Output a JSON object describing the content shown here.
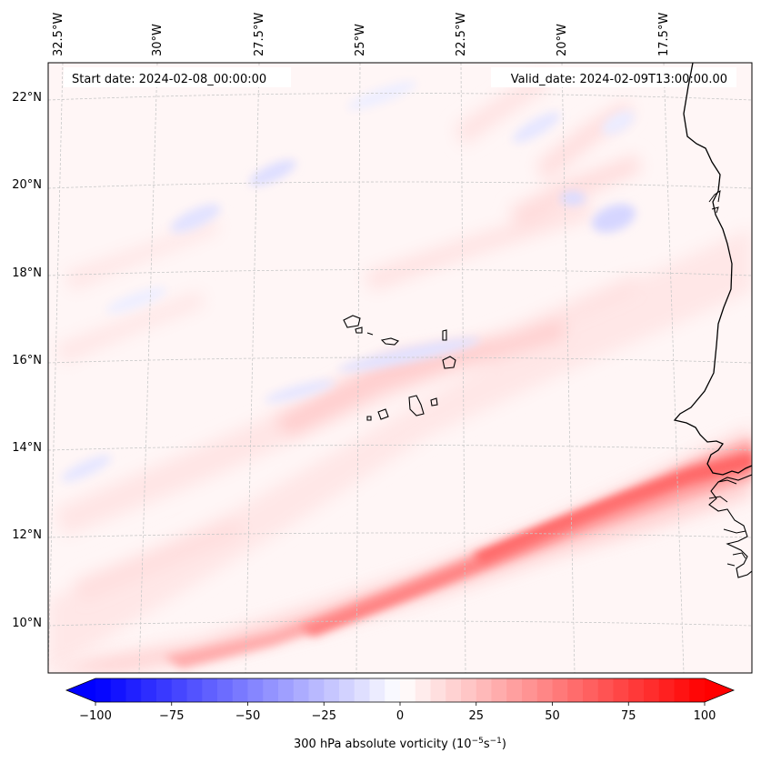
{
  "chart_data": {
    "type": "heatmap",
    "title": "",
    "variable": "300 hPa absolute vorticity",
    "units_base": "10",
    "units_exp1": "−5",
    "units_mid": "s",
    "units_exp2": "−1",
    "start_date_label": "Start date: 2024-02-08_00:00:00",
    "valid_date_label": "Valid_date: 2024-02-09T13:00:00.00",
    "lon_labels": [
      "32.5°W",
      "30°W",
      "27.5°W",
      "25°W",
      "22.5°W",
      "20°W",
      "17.5°W"
    ],
    "lon_values": [
      -32.5,
      -30,
      -27.5,
      -25,
      -22.5,
      -20,
      -17.5
    ],
    "lat_labels": [
      "22°N",
      "20°N",
      "18°N",
      "16°N",
      "14°N",
      "12°N",
      "10°N"
    ],
    "lat_values": [
      22,
      20,
      18,
      16,
      14,
      12,
      10
    ],
    "colorbar": {
      "min": -100,
      "max": 100,
      "levels": 41,
      "ticks": [
        -100,
        -75,
        -50,
        -25,
        0,
        25,
        50,
        75,
        100
      ],
      "tick_labels": [
        "−100",
        "−75",
        "−50",
        "−25",
        "0",
        "25",
        "50",
        "75",
        "100"
      ],
      "extend": "both",
      "colormap": "bwr"
    },
    "features": {
      "main_band_max": 62,
      "main_band_from": "10°N 30°W",
      "main_band_to": "13.5°N 17°W",
      "background": "weak positive (≈5) with scattered negative streaks (≈ −15)"
    }
  },
  "colors": {
    "coast": "#000000",
    "grid": "#c8c8c8",
    "frame": "#000000"
  }
}
